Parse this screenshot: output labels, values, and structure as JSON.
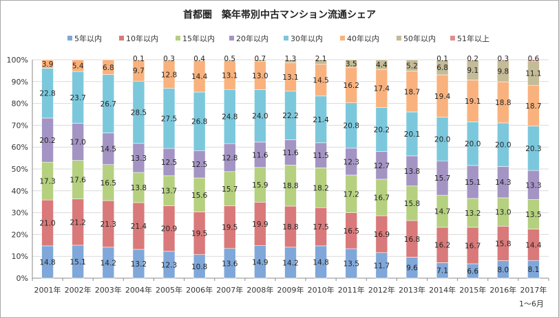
{
  "chart_data": {
    "type": "bar",
    "stacked": true,
    "normalized_percent": true,
    "title": "首都圏　築年帯別中古マンション流通シェア",
    "xlabel": "",
    "ylabel": "",
    "ylim": [
      0,
      100
    ],
    "y_ticks": [
      "0%",
      "10%",
      "20%",
      "30%",
      "40%",
      "50%",
      "60%",
      "70%",
      "80%",
      "90%",
      "100%"
    ],
    "grid": true,
    "legend_position": "top",
    "categories": [
      "2001年",
      "2002年",
      "2003年",
      "2004年",
      "2005年",
      "2006年",
      "2007年",
      "2008年",
      "2009年",
      "2010年",
      "2011年",
      "2012年",
      "2013年",
      "2014年",
      "2015年",
      "2016年",
      "2017年"
    ],
    "category_note": "1～6月",
    "series": [
      {
        "name": "5年以内",
        "color": "#7fa7d9",
        "values": [
          14.8,
          15.1,
          14.2,
          13.2,
          12.3,
          10.8,
          13.6,
          14.9,
          14.2,
          14.8,
          13.5,
          11.7,
          9.6,
          7.1,
          6.6,
          8.0,
          8.1
        ]
      },
      {
        "name": "10年以内",
        "color": "#d9797a",
        "values": [
          21.0,
          21.2,
          21.3,
          21.4,
          20.9,
          19.5,
          19.5,
          19.9,
          18.8,
          17.5,
          16.5,
          16.9,
          16.8,
          16.2,
          16.7,
          15.8,
          14.4
        ]
      },
      {
        "name": "15年以内",
        "color": "#b5d07e",
        "values": [
          17.3,
          17.6,
          16.5,
          13.8,
          13.7,
          15.6,
          15.7,
          15.9,
          18.8,
          18.2,
          17.2,
          16.7,
          15.8,
          14.7,
          13.2,
          13.0,
          13.5
        ]
      },
      {
        "name": "20年以内",
        "color": "#a494c4",
        "values": [
          20.2,
          17.0,
          14.5,
          13.3,
          12.5,
          12.5,
          12.8,
          11.6,
          11.6,
          11.5,
          12.3,
          12.7,
          13.8,
          15.7,
          15.1,
          14.3,
          13.3
        ]
      },
      {
        "name": "30年以内",
        "color": "#7bc8dc",
        "values": [
          22.8,
          23.7,
          26.7,
          28.5,
          27.5,
          26.8,
          24.8,
          24.0,
          22.2,
          21.4,
          20.8,
          20.2,
          20.1,
          20.0,
          20.0,
          20.0,
          20.3
        ]
      },
      {
        "name": "40年以内",
        "color": "#f9b27d",
        "values": [
          3.9,
          5.4,
          6.8,
          9.7,
          12.8,
          14.4,
          13.1,
          13.0,
          13.1,
          14.5,
          16.2,
          17.4,
          18.7,
          19.4,
          19.1,
          18.8,
          18.7
        ]
      },
      {
        "name": "50年以内",
        "color": "#c4bb97",
        "values": [
          null,
          null,
          null,
          0.1,
          0.3,
          0.4,
          0.5,
          0.7,
          1.3,
          2.1,
          3.5,
          4.4,
          5.2,
          6.8,
          9.1,
          9.8,
          11.1
        ]
      },
      {
        "name": "51年以上",
        "color": "#dd8e8e",
        "values": [
          null,
          null,
          null,
          null,
          null,
          null,
          null,
          null,
          null,
          null,
          null,
          null,
          null,
          0.1,
          0.2,
          0.3,
          0.6
        ]
      }
    ]
  }
}
